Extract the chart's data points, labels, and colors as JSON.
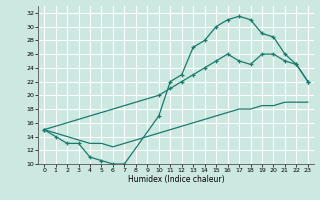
{
  "xlabel": "Humidex (Indice chaleur)",
  "xlim": [
    -0.5,
    23.5
  ],
  "ylim": [
    10,
    33
  ],
  "yticks": [
    10,
    12,
    14,
    16,
    18,
    20,
    22,
    24,
    26,
    28,
    30,
    32
  ],
  "xticks": [
    0,
    1,
    2,
    3,
    4,
    5,
    6,
    7,
    8,
    9,
    10,
    11,
    12,
    13,
    14,
    15,
    16,
    17,
    18,
    19,
    20,
    21,
    22,
    23
  ],
  "bg_color": "#cce8e0",
  "line_color": "#1a7a6e",
  "line1_x": [
    0,
    1,
    2,
    3,
    4,
    5,
    6,
    7,
    10,
    11,
    12,
    13,
    14,
    15,
    16,
    17,
    18,
    19,
    20,
    21,
    22,
    23
  ],
  "line1_y": [
    15,
    14,
    13,
    13,
    11,
    10.5,
    10,
    10,
    17,
    22,
    23,
    27,
    28,
    30,
    31,
    31.5,
    31,
    29,
    28.5,
    26,
    24.5,
    22
  ],
  "line2_x": [
    0,
    1,
    2,
    3,
    4,
    5,
    6,
    7,
    8,
    9,
    10,
    11,
    12,
    13,
    14,
    15,
    16,
    17,
    18,
    19,
    20,
    21,
    22,
    23
  ],
  "line2_y": [
    15,
    14.5,
    14,
    13.5,
    13,
    13,
    12.5,
    13,
    13.5,
    14,
    14.5,
    15,
    15.5,
    16,
    16.5,
    17,
    17.5,
    18,
    18,
    18.5,
    18.5,
    19,
    19,
    19
  ],
  "line3_x": [
    0,
    10,
    11,
    12,
    13,
    14,
    15,
    16,
    17,
    18,
    19,
    20,
    21,
    22,
    23
  ],
  "line3_y": [
    15,
    20,
    21,
    22,
    23,
    24,
    25,
    26,
    25,
    24.5,
    26,
    26,
    25,
    24.5,
    22
  ]
}
